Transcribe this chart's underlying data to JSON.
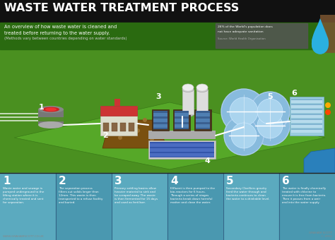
{
  "title": "WASTE WATER TREATMENT PROCESS",
  "subtitle1": "An overview of how waste water is cleaned and",
  "subtitle2": "treated before returning to the water supply.",
  "subtitle3": "(Methods vary between countries depending on water standards)",
  "stat_text1": "26% of the World's population does",
  "stat_text2": "not have adequate sanitation",
  "stat_text3": "Source: World Health Organisation",
  "title_bg": "#1a1a1a",
  "scene_bg": "#4a8c2a",
  "bottom_bg": "#3d3d3d",
  "steps": [
    {
      "num": "1",
      "bg": "#5baabf",
      "text": "Waste water and sewage is\npumped underground to the\nlifting station where it is\nchemically treated and sent\nfor separation."
    },
    {
      "num": "2",
      "bg": "#4a98b0",
      "text": "The separation process\nfilters out solids larger than\n12mm. This waste is then\ntransported to a refuse facility\nand buried."
    },
    {
      "num": "3",
      "bg": "#5baabf",
      "text": "Primary settling basins allow\nheavier material to sink and\nbe scraped away. The waste\nis then fermented for 15 days\nand used as fertiliser."
    },
    {
      "num": "4",
      "bg": "#4a98b0",
      "text": "Effluent is then pumped to the\nbio-reactors for 6 hours.\nThrough a series of stages\nbacteria break down harmful\nmatter and clean the water."
    },
    {
      "num": "5",
      "bg": "#5baabf",
      "text": "Secondary Clarifiers gravity\nfeed the water through and\nbacteria continues to clean\nthe water to a drinkable level."
    },
    {
      "num": "6",
      "bg": "#4a98b0",
      "text": "The water is finally chemically\ntreated with chlorine to\nensure it is free from bacteria.\nThen it passes from a weir\nand into the water supply."
    }
  ],
  "green_floor": "#4a9c28",
  "green_dark": "#3a7c1e",
  "brown_sludge": "#7a5010",
  "pipe_color": "#ffffff",
  "footer_text": "WWW.GRAHAMSCOTT.CO.UK",
  "footer_right": "GRAHAM SCOTT\n© 2013"
}
